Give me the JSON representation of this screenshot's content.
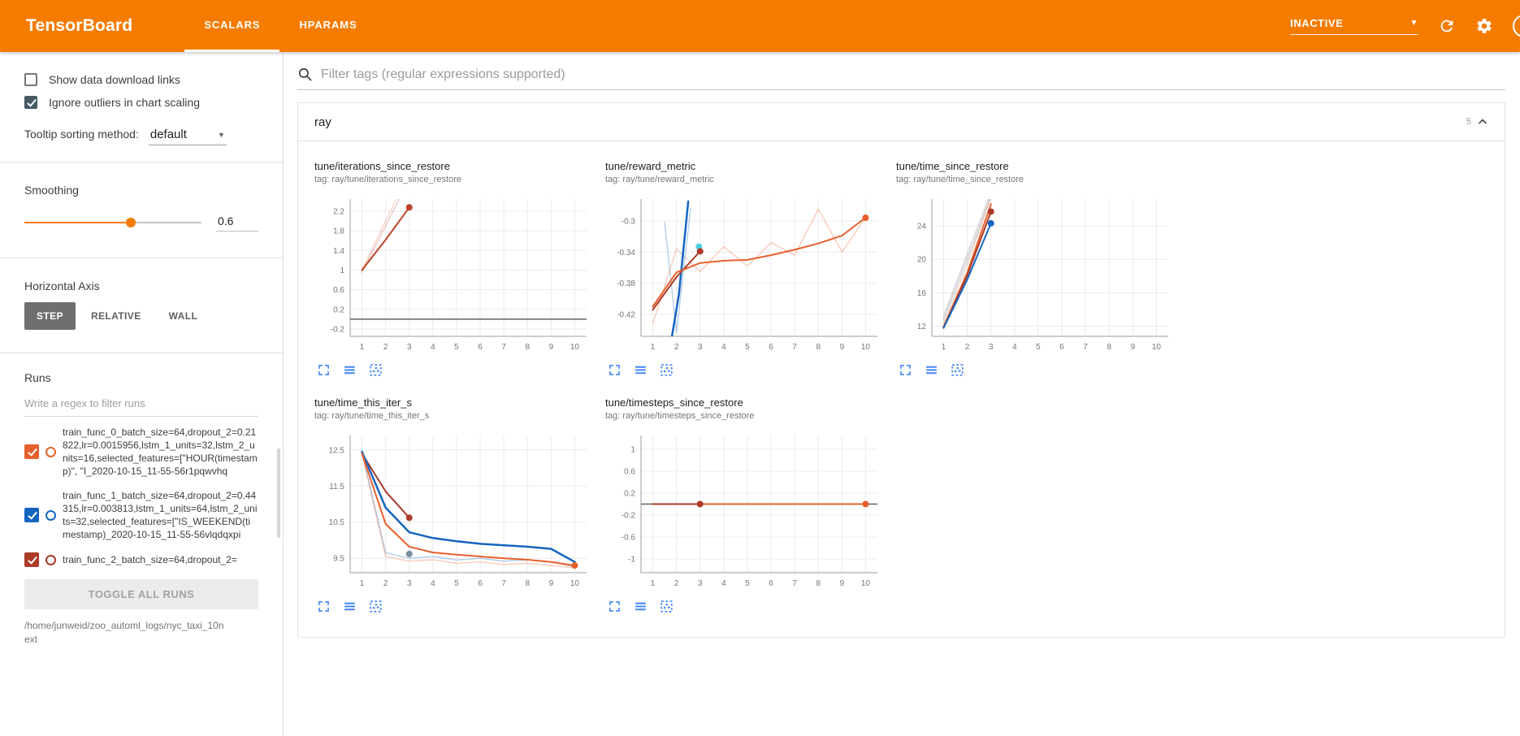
{
  "colors": {
    "header_bg": "#f57c00",
    "toolbar_icon_blue": "#4285f4",
    "run_orange": "#e8602c",
    "run_blue": "#1565c0",
    "run_red": "#ab3b28",
    "zero_line_gray": "#616161",
    "checkbox_checked": "#455a64"
  },
  "icons": {
    "header": [
      "chevron-down-icon",
      "refresh-icon",
      "gear-icon",
      "help-icon"
    ],
    "main": [
      "search-icon",
      "chevron-up-icon"
    ],
    "chart_toolbar": [
      "expand-chart-icon",
      "data-table-icon",
      "fit-domain-icon"
    ]
  },
  "header": {
    "title": "TensorBoard",
    "tabs": [
      {
        "label": "SCALARS",
        "active": true
      },
      {
        "label": "HPARAMS",
        "active": false
      }
    ],
    "status_dropdown": "INACTIVE"
  },
  "sidebar": {
    "show_download_links": {
      "label": "Show data download links",
      "checked": false
    },
    "ignore_outliers": {
      "label": "Ignore outliers in chart scaling",
      "checked": true
    },
    "tooltip_sorting": {
      "label": "Tooltip sorting method:",
      "value": "default"
    },
    "smoothing": {
      "label": "Smoothing",
      "value": "0.6",
      "percent": 60
    },
    "horizontal_axis": {
      "label": "Horizontal Axis",
      "options": [
        "STEP",
        "RELATIVE",
        "WALL"
      ],
      "selected": "STEP"
    },
    "runs": {
      "label": "Runs",
      "filter_placeholder": "Write a regex to filter runs",
      "items": [
        {
          "label": "train_func_0_batch_size=64,dropout_2=0.21822,lr=0.0015956,lstm_1_units=32,lstm_2_units=16,selected_features=[\"HOUR(timestamp)\", \"I_2020-10-15_11-55-56r1pqwvhq",
          "checked": true,
          "color": "#e8602c"
        },
        {
          "label": "train_func_1_batch_size=64,dropout_2=0.44315,lr=0.003813,lstm_1_units=64,lstm_2_units=32,selected_features=[\"IS_WEEKEND(timestamp)_2020-10-15_11-55-56vlqdqxpi",
          "checked": true,
          "color": "#1565c0"
        },
        {
          "label": "train_func_2_batch_size=64,dropout_2=",
          "checked": true,
          "color": "#ab3b28"
        }
      ],
      "toggle_all_label": "TOGGLE ALL RUNS",
      "log_dir": "/home/junweid/zoo_automl_logs/nyc_taxi_10next"
    }
  },
  "main": {
    "filter_placeholder": "Filter tags (regular expressions supported)",
    "card": {
      "title": "ray",
      "count": "5"
    }
  },
  "chart_data": [
    {
      "type": "line",
      "title": "tune/iterations_since_restore",
      "tag_label": "tag: ray/tune/iterations_since_restore",
      "xlabel": "",
      "ylabel": "",
      "xticks": [
        1,
        2,
        3,
        4,
        5,
        6,
        7,
        8,
        9,
        10
      ],
      "xlim": [
        0.5,
        10.5
      ],
      "yticks": [
        -0.2,
        0.2,
        0.6,
        1,
        1.4,
        1.8,
        2.2
      ],
      "ylim": [
        -0.35,
        2.45
      ],
      "series": [
        {
          "name": "train_func_0 (raw)",
          "color": "#e8602c",
          "width": 1.5,
          "opacity": 0.25,
          "points": [
            [
              1,
              1
            ],
            [
              2,
              2
            ],
            [
              3,
              3
            ]
          ]
        },
        {
          "name": "train_func_2 (raw)",
          "color": "#ab3b28",
          "width": 1.5,
          "opacity": 0.25,
          "points": [
            [
              1,
              0.95
            ],
            [
              2,
              1.9
            ],
            [
              3,
              2.85
            ]
          ]
        },
        {
          "name": "train_func_2",
          "color": "#bf4327",
          "width": 2,
          "opacity": 1,
          "points": [
            [
              1,
              1
            ],
            [
              2,
              1.62
            ],
            [
              3,
              2.28
            ]
          ],
          "markers": [
            [
              3,
              2.28
            ]
          ]
        },
        {
          "name": "baseline-zero",
          "color": "#616161",
          "width": 1.5,
          "opacity": 1,
          "points": [
            [
              0.5,
              0
            ],
            [
              10.5,
              0
            ]
          ]
        }
      ]
    },
    {
      "type": "line",
      "title": "tune/reward_metric",
      "tag_label": "tag: ray/tune/reward_metric",
      "xlabel": "",
      "ylabel": "",
      "xticks": [
        1,
        2,
        3,
        4,
        5,
        6,
        7,
        8,
        9,
        10
      ],
      "xlim": [
        0.5,
        10.5
      ],
      "yticks": [
        -0.42,
        -0.38,
        -0.34,
        -0.3
      ],
      "ylim": [
        -0.448,
        -0.272
      ],
      "series": [
        {
          "name": "train_func_0 (raw)",
          "color": "#e8602c",
          "width": 1.5,
          "opacity": 0.3,
          "points": [
            [
              1,
              -0.432
            ],
            [
              2,
              -0.336
            ],
            [
              3,
              -0.365
            ],
            [
              4,
              -0.333
            ],
            [
              5,
              -0.358
            ],
            [
              6,
              -0.328
            ],
            [
              7,
              -0.344
            ],
            [
              8,
              -0.285
            ],
            [
              9,
              -0.34
            ],
            [
              10,
              -0.296
            ]
          ]
        },
        {
          "name": "train_func_1 (raw)",
          "color": "#1565c0",
          "width": 1.5,
          "opacity": 0.3,
          "points": [
            [
              1.5,
              -0.302
            ],
            [
              2,
              -0.443
            ],
            [
              2.6,
              -0.284
            ]
          ]
        },
        {
          "name": "train_func_1",
          "color": "#1565c0",
          "width": 2.5,
          "opacity": 1,
          "points": [
            [
              1.8,
              -0.45
            ],
            [
              2.1,
              -0.395
            ],
            [
              2.5,
              -0.275
            ]
          ]
        },
        {
          "name": "train_func_1 (end marker)",
          "color": "#4dd0e1",
          "width": 2,
          "opacity": 1,
          "points": [],
          "markers": [
            [
              2.95,
              -0.333
            ]
          ]
        },
        {
          "name": "train_func_2",
          "color": "#ab3b28",
          "width": 2,
          "opacity": 1,
          "points": [
            [
              1,
              -0.414
            ],
            [
              2,
              -0.372
            ],
            [
              3,
              -0.339
            ]
          ],
          "markers": [
            [
              3,
              -0.339
            ]
          ]
        },
        {
          "name": "train_func_0",
          "color": "#e8602c",
          "width": 2,
          "opacity": 1,
          "points": [
            [
              1,
              -0.41
            ],
            [
              2,
              -0.366
            ],
            [
              3,
              -0.354
            ],
            [
              4,
              -0.351
            ],
            [
              5,
              -0.35
            ],
            [
              6,
              -0.344
            ],
            [
              7,
              -0.337
            ],
            [
              8,
              -0.329
            ],
            [
              9,
              -0.319
            ],
            [
              10,
              -0.296
            ]
          ],
          "markers": [
            [
              10,
              -0.296
            ]
          ]
        }
      ]
    },
    {
      "type": "line",
      "title": "tune/time_since_restore",
      "tag_label": "tag: ray/tune/time_since_restore",
      "xlabel": "",
      "ylabel": "",
      "xticks": [
        1,
        2,
        3,
        4,
        5,
        6,
        7,
        8,
        9,
        10
      ],
      "xlim": [
        0.5,
        10.5
      ],
      "yticks": [
        12,
        16,
        20,
        24
      ],
      "ylim": [
        10.8,
        27.2
      ],
      "series": [
        {
          "name": "raw-a",
          "color": "#b0a6c4",
          "width": 2,
          "opacity": 0.4,
          "points": [
            [
              1,
              13.2
            ],
            [
              2,
              20.6
            ],
            [
              3,
              28
            ]
          ]
        },
        {
          "name": "raw-b",
          "color": "#9e9e9e",
          "width": 2,
          "opacity": 0.35,
          "points": [
            [
              1,
              12.8
            ],
            [
              2,
              20
            ],
            [
              3,
              27.4
            ]
          ]
        },
        {
          "name": "train_func_0 (raw)",
          "color": "#e8602c",
          "width": 1.5,
          "opacity": 0.25,
          "points": [
            [
              1,
              12.3
            ],
            [
              2,
              19.3
            ],
            [
              3,
              27.6
            ]
          ]
        },
        {
          "name": "train_func_0",
          "color": "#e8602c",
          "width": 2,
          "opacity": 1,
          "points": [
            [
              1,
              11.9
            ],
            [
              2,
              18.4
            ],
            [
              3,
              26.6
            ]
          ]
        },
        {
          "name": "train_func_2",
          "color": "#ab3b28",
          "width": 2,
          "opacity": 1,
          "points": [
            [
              1,
              11.9
            ],
            [
              2,
              18.1
            ],
            [
              3,
              25.7
            ]
          ],
          "markers": [
            [
              3,
              25.7
            ]
          ]
        },
        {
          "name": "train_func_1",
          "color": "#1565c0",
          "width": 2,
          "opacity": 1,
          "points": [
            [
              1,
              11.8
            ],
            [
              2,
              17.6
            ],
            [
              3,
              24.3
            ]
          ],
          "markers": [
            [
              3,
              24.3
            ]
          ]
        }
      ]
    },
    {
      "type": "line",
      "title": "tune/time_this_iter_s",
      "tag_label": "tag: ray/tune/time_this_iter_s",
      "xlabel": "",
      "ylabel": "",
      "xticks": [
        1,
        2,
        3,
        4,
        5,
        6,
        7,
        8,
        9,
        10
      ],
      "xlim": [
        0.5,
        10.5
      ],
      "yticks": [
        9.5,
        10.5,
        11.5,
        12.5
      ],
      "ylim": [
        9.1,
        12.9
      ],
      "series": [
        {
          "name": "train_func_1 (raw)",
          "color": "#1565c0",
          "width": 1.5,
          "opacity": 0.3,
          "points": [
            [
              1,
              12.45
            ],
            [
              2,
              9.65
            ],
            [
              3,
              9.5
            ],
            [
              4,
              9.55
            ],
            [
              5,
              9.45
            ],
            [
              6,
              9.5
            ],
            [
              7,
              9.42
            ],
            [
              8,
              9.46
            ],
            [
              9,
              9.4
            ],
            [
              10,
              9.26
            ]
          ]
        },
        {
          "name": "train_func_0 (raw)",
          "color": "#e8602c",
          "width": 1.5,
          "opacity": 0.3,
          "points": [
            [
              1,
              12.4
            ],
            [
              2,
              9.55
            ],
            [
              3,
              9.42
            ],
            [
              4,
              9.46
            ],
            [
              5,
              9.36
            ],
            [
              6,
              9.4
            ],
            [
              7,
              9.33
            ],
            [
              8,
              9.36
            ],
            [
              9,
              9.3
            ],
            [
              10,
              9.24
            ]
          ]
        },
        {
          "name": "train_func_2",
          "color": "#ab3b28",
          "width": 2,
          "opacity": 1,
          "points": [
            [
              1,
              12.4
            ],
            [
              2,
              11.35
            ],
            [
              3,
              10.62
            ]
          ],
          "markers": [
            [
              3,
              10.62
            ]
          ]
        },
        {
          "name": "train_func_1",
          "color": "#1565c0",
          "width": 2.5,
          "opacity": 1,
          "points": [
            [
              1,
              12.45
            ],
            [
              2,
              10.9
            ],
            [
              3,
              10.22
            ],
            [
              4,
              10.06
            ],
            [
              5,
              9.97
            ],
            [
              6,
              9.9
            ],
            [
              7,
              9.86
            ],
            [
              8,
              9.82
            ],
            [
              9,
              9.76
            ],
            [
              10,
              9.4
            ]
          ]
        },
        {
          "name": "train_func_0",
          "color": "#e8602c",
          "width": 2,
          "opacity": 1,
          "points": [
            [
              1,
              12.4
            ],
            [
              2,
              10.45
            ],
            [
              3,
              9.82
            ],
            [
              4,
              9.66
            ],
            [
              5,
              9.6
            ],
            [
              6,
              9.55
            ],
            [
              7,
              9.5
            ],
            [
              8,
              9.46
            ],
            [
              9,
              9.4
            ],
            [
              10,
              9.3
            ]
          ],
          "markers": [
            [
              10,
              9.3
            ]
          ]
        },
        {
          "name": "train_func_1 (end marker)",
          "color": "#78909c",
          "width": 2,
          "opacity": 1,
          "points": [],
          "markers": [
            [
              3,
              9.62
            ]
          ]
        }
      ]
    },
    {
      "type": "line",
      "title": "tune/timesteps_since_restore",
      "tag_label": "tag: ray/tune/timesteps_since_restore",
      "xlabel": "",
      "ylabel": "",
      "xticks": [
        1,
        2,
        3,
        4,
        5,
        6,
        7,
        8,
        9,
        10
      ],
      "xlim": [
        0.5,
        10.5
      ],
      "yticks": [
        -1,
        -0.6,
        -0.2,
        0.2,
        0.6,
        1
      ],
      "ylim": [
        -1.25,
        1.25
      ],
      "series": [
        {
          "name": "baseline-zero",
          "color": "#616161",
          "width": 1.5,
          "opacity": 1,
          "points": [
            [
              0.5,
              0
            ],
            [
              10.5,
              0
            ]
          ]
        },
        {
          "name": "train_func_0",
          "color": "#e8602c",
          "width": 2,
          "opacity": 1,
          "points": [
            [
              1,
              0
            ],
            [
              10,
              0
            ]
          ],
          "markers": [
            [
              10,
              0
            ]
          ]
        },
        {
          "name": "train_func_2",
          "color": "#ab3b28",
          "width": 2,
          "opacity": 1,
          "points": [
            [
              1,
              0
            ],
            [
              3,
              0
            ]
          ],
          "markers": [
            [
              3,
              0
            ]
          ]
        }
      ]
    }
  ]
}
